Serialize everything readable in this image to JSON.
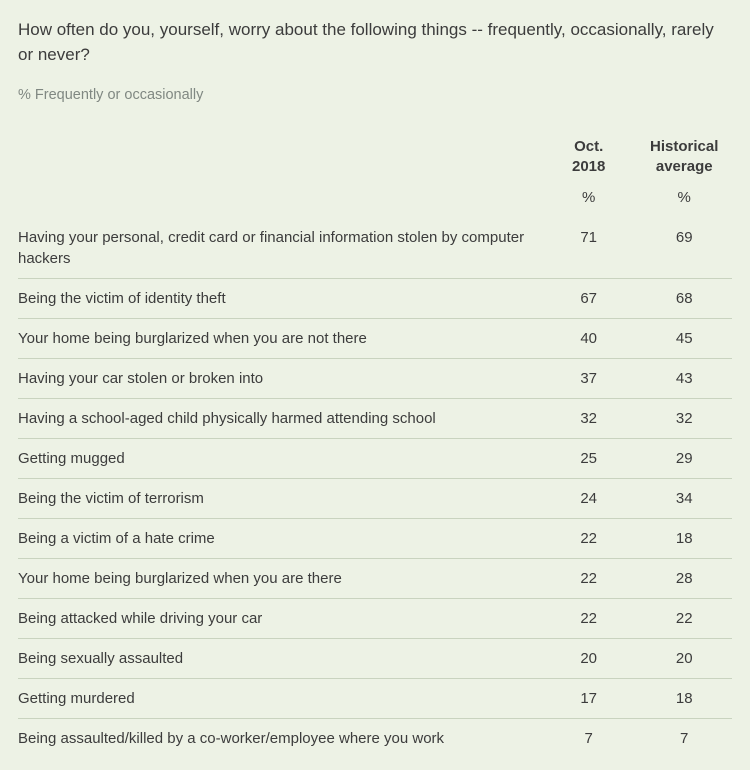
{
  "question": "How often do you, yourself, worry about the following things -- frequently, occasionally, rarely or never?",
  "subhead": "% Frequently or occasionally",
  "columns": {
    "col1": {
      "line1": "Oct.",
      "line2": "2018",
      "unit": "%"
    },
    "col2": {
      "line1": "Historical",
      "line2": "average",
      "unit": "%"
    }
  },
  "rows": [
    {
      "label": "Having your personal, credit card or financial information stolen by computer hackers",
      "v1": "71",
      "v2": "69"
    },
    {
      "label": "Being the victim of identity theft",
      "v1": "67",
      "v2": "68"
    },
    {
      "label": "Your home being burglarized when you are not there",
      "v1": "40",
      "v2": "45"
    },
    {
      "label": "Having your car stolen or broken into",
      "v1": "37",
      "v2": "43"
    },
    {
      "label": "Having a school-aged child physically harmed attending school",
      "v1": "32",
      "v2": "32"
    },
    {
      "label": "Getting mugged",
      "v1": "25",
      "v2": "29"
    },
    {
      "label": "Being the victim of terrorism",
      "v1": "24",
      "v2": "34"
    },
    {
      "label": "Being a victim of a hate crime",
      "v1": "22",
      "v2": "18"
    },
    {
      "label": "Your home being burglarized when you are there",
      "v1": "22",
      "v2": "28"
    },
    {
      "label": "Being attacked while driving your car",
      "v1": "22",
      "v2": "22"
    },
    {
      "label": "Being sexually assaulted",
      "v1": "20",
      "v2": "20"
    },
    {
      "label": "Getting murdered",
      "v1": "17",
      "v2": "18"
    },
    {
      "label": "Being assaulted/killed by a co-worker/employee where you work",
      "v1": "7",
      "v2": "7"
    }
  ],
  "style": {
    "background_color": "#edf2e5",
    "text_color": "#3c3c3c",
    "subhead_color": "#808882",
    "divider_color": "#c9d3bf",
    "question_fontsize": 17,
    "body_fontsize": 15,
    "subhead_fontsize": 14.5
  }
}
